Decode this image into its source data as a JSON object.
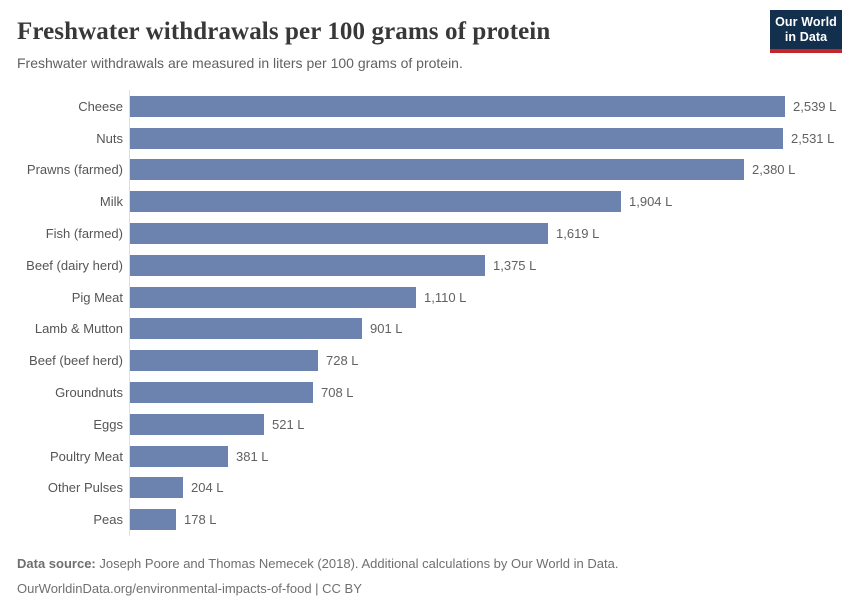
{
  "header": {
    "title": "Freshwater withdrawals per 100 grams of protein",
    "subtitle": "Freshwater withdrawals are measured in liters per 100 grams of protein.",
    "logo": {
      "line1": "Our World",
      "line2": "in Data",
      "background_color": "#12304d",
      "accent_color": "#c5262b"
    }
  },
  "chart_data": {
    "type": "bar",
    "orientation": "horizontal",
    "title": "Freshwater withdrawals per 100 grams of protein",
    "xlabel": "",
    "ylabel": "",
    "unit": "L",
    "xlim": [
      0,
      2750
    ],
    "grid": false,
    "legend": false,
    "bar_color": "#6c83b0",
    "axis_line_color": "#dedede",
    "categories": [
      "Cheese",
      "Nuts",
      "Prawns (farmed)",
      "Milk",
      "Fish (farmed)",
      "Beef (dairy herd)",
      "Pig Meat",
      "Lamb & Mutton",
      "Beef (beef herd)",
      "Groundnuts",
      "Eggs",
      "Poultry Meat",
      "Other Pulses",
      "Peas"
    ],
    "values": [
      2539,
      2531,
      2380,
      1904,
      1619,
      1375,
      1110,
      901,
      728,
      708,
      521,
      381,
      204,
      178
    ],
    "value_labels": [
      "2,539 L",
      "2,531 L",
      "2,380 L",
      "1,904 L",
      "1,619 L",
      "1,375 L",
      "1,110 L",
      "901 L",
      "728 L",
      "708 L",
      "521 L",
      "381 L",
      "204 L",
      "178 L"
    ]
  },
  "footer": {
    "source_label": "Data source:",
    "source_text": " Joseph Poore and Thomas Nemecek (2018). Additional calculations by Our World in Data.",
    "link_line": "OurWorldinData.org/environmental-impacts-of-food | CC BY"
  }
}
